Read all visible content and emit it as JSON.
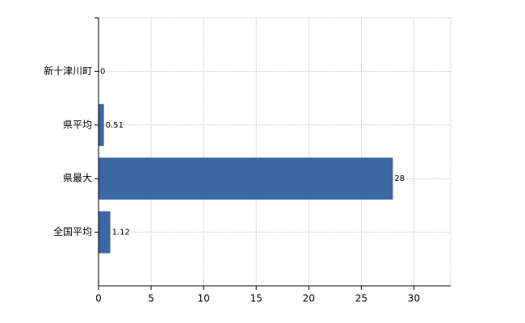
{
  "chart_data": {
    "type": "barh",
    "categories": [
      "新十津川町",
      "県平均",
      "県最大",
      "全国平均"
    ],
    "values": [
      0,
      0.51,
      28,
      1.12
    ],
    "color": "#3b67a3",
    "xlim": [
      0,
      33.5
    ],
    "xticks": [
      0,
      5,
      10,
      15,
      20,
      25,
      30
    ],
    "grid": true
  }
}
